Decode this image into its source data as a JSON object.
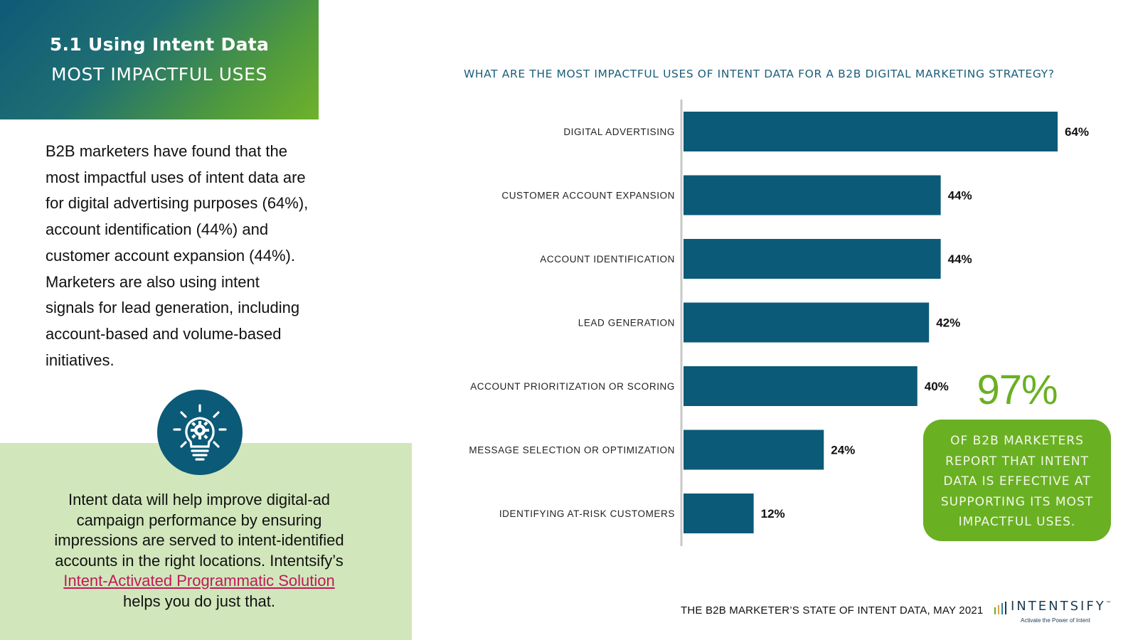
{
  "header": {
    "title": "5.1 Using Intent Data",
    "subtitle": "MOST IMPACTFUL USES"
  },
  "intro_text": "B2B marketers have found that the most impactful uses of intent data are for digital advertising purposes (64%), account identification (44%) and customer account expansion (44%). Marketers are also using intent signals for lead generation, including account-based and volume-based initiatives.",
  "panel": {
    "icon": "lightbulb-gear-icon",
    "text_before": "Intent data will help improve digital-ad campaign performance by ensuring impressions are served to intent-identified accounts in the right locations. Intentsify’s",
    "link_text": "Intent-Activated Programmatic Solution",
    "text_after": "helps you do just that."
  },
  "stat": {
    "value": "97%",
    "text": "OF B2B MARKETERS REPORT THAT INTENT DATA IS EFFECTIVE AT SUPPORTING ITS MOST IMPACTFUL USES."
  },
  "footer": {
    "source": "THE B2B MARKETER’S STATE OF INTENT DATA, MAY 2021",
    "logo_word": "INTENTSIFY",
    "logo_mark": "™",
    "logo_tagline": "Activate the Power of Intent"
  },
  "colors": {
    "bar": "#0b5a78",
    "accent_green": "#6ab023",
    "panel_green": "#d1e7bb",
    "title_blue": "#1b5e7b",
    "link": "#c2185b"
  },
  "chart_data": {
    "type": "bar",
    "orientation": "horizontal",
    "title": "WHAT ARE THE MOST IMPACTFUL USES OF INTENT DATA FOR A B2B DIGITAL MARKETING STRATEGY?",
    "categories": [
      "DIGITAL ADVERTISING",
      "CUSTOMER ACCOUNT EXPANSION",
      "ACCOUNT IDENTIFICATION",
      "LEAD GENERATION",
      "ACCOUNT PRIORITIZATION OR SCORING",
      "MESSAGE SELECTION OR OPTIMIZATION",
      "IDENTIFYING AT-RISK CUSTOMERS"
    ],
    "values": [
      64,
      44,
      44,
      42,
      40,
      24,
      12
    ],
    "labels": [
      "64%",
      "44%",
      "44%",
      "42%",
      "40%",
      "24%",
      "12%"
    ],
    "unit": "%",
    "xlim": [
      0,
      64
    ],
    "grid": false,
    "legend": "none"
  }
}
